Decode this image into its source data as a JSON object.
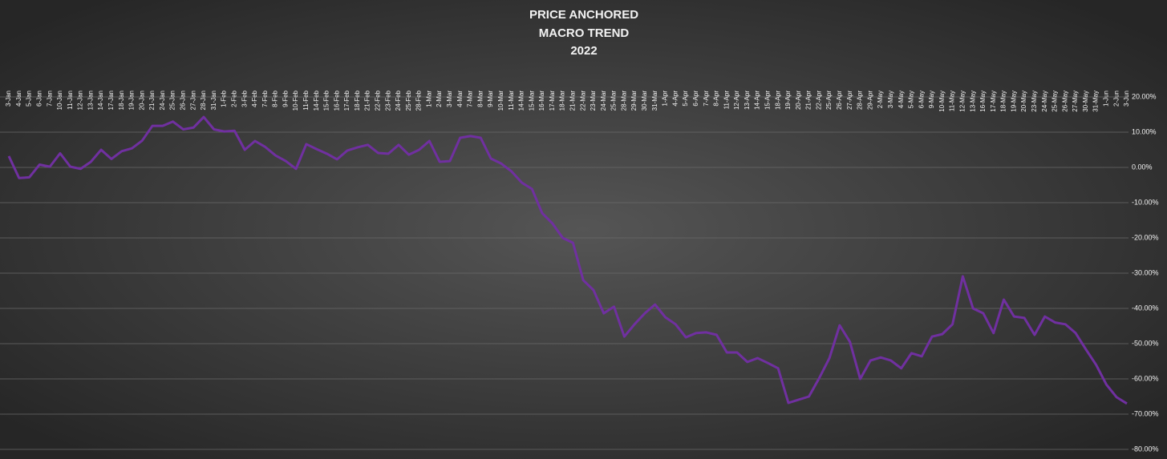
{
  "chart_data": {
    "type": "line",
    "title": [
      "PRICE ANCHORED",
      "MACRO TREND",
      "2022"
    ],
    "categories": [
      "3-Jan",
      "4-Jan",
      "5-Jan",
      "6-Jan",
      "7-Jan",
      "10-Jan",
      "11-Jan",
      "12-Jan",
      "13-Jan",
      "14-Jan",
      "17-Jan",
      "18-Jan",
      "19-Jan",
      "20-Jan",
      "21-Jan",
      "24-Jan",
      "25-Jan",
      "26-Jan",
      "27-Jan",
      "28-Jan",
      "31-Jan",
      "1-Feb",
      "2-Feb",
      "3-Feb",
      "4-Feb",
      "7-Feb",
      "8-Feb",
      "9-Feb",
      "10-Feb",
      "11-Feb",
      "14-Feb",
      "15-Feb",
      "16-Feb",
      "17-Feb",
      "18-Feb",
      "21-Feb",
      "22-Feb",
      "23-Feb",
      "24-Feb",
      "25-Feb",
      "28-Feb",
      "1-Mar",
      "2-Mar",
      "3-Mar",
      "4-Mar",
      "7-Mar",
      "8-Mar",
      "9-Mar",
      "10-Mar",
      "11-Mar",
      "14-Mar",
      "15-Mar",
      "16-Mar",
      "17-Mar",
      "18-Mar",
      "21-Mar",
      "22-Mar",
      "23-Mar",
      "24-Mar",
      "25-Mar",
      "28-Mar",
      "29-Mar",
      "30-Mar",
      "31-Mar",
      "1-Apr",
      "4-Apr",
      "5-Apr",
      "6-Apr",
      "7-Apr",
      "8-Apr",
      "11-Apr",
      "12-Apr",
      "13-Apr",
      "14-Apr",
      "15-Apr",
      "18-Apr",
      "19-Apr",
      "20-Apr",
      "21-Apr",
      "22-Apr",
      "25-Apr",
      "26-Apr",
      "27-Apr",
      "28-Apr",
      "29-Apr",
      "2-May",
      "3-May",
      "4-May",
      "5-May",
      "6-May",
      "9-May",
      "10-May",
      "11-May",
      "12-May",
      "13-May",
      "16-May",
      "17-May",
      "18-May",
      "19-May",
      "20-May",
      "23-May",
      "24-May",
      "25-May",
      "26-May",
      "27-May",
      "30-May",
      "31-May",
      "1-Jun",
      "2-Jun",
      "3-Jun"
    ],
    "series": [
      {
        "color": "#7030a0",
        "values": [
          3.2,
          -3,
          -2.8,
          0.8,
          0.2,
          4,
          0.2,
          -0.4,
          1.6,
          5,
          2.4,
          4.6,
          5.4,
          7.6,
          11.8,
          11.8,
          13,
          10.8,
          11.3,
          14.3,
          10.8,
          10.2,
          10.4,
          5,
          7.5,
          5.8,
          3.4,
          1.8,
          -0.4,
          6.6,
          5.2,
          3.9,
          2.3,
          4.8,
          5.7,
          6.4,
          4.1,
          3.9,
          6.4,
          3.6,
          5,
          7.5,
          1.6,
          1.8,
          8.4,
          8.9,
          8.4,
          2.5,
          1.1,
          -1.1,
          -4.3,
          -6.1,
          -13,
          -15.9,
          -20,
          -21.4,
          -32,
          -34.8,
          -41.4,
          -39.5,
          -48,
          -44.5,
          -41.4,
          -38.9,
          -42.5,
          -44.5,
          -48.2,
          -47,
          -46.8,
          -47.5,
          -52.5,
          -52.5,
          -55.2,
          -54.1,
          -55.5,
          -57,
          -66.8,
          -65.9,
          -65,
          -59.8,
          -54.1,
          -44.8,
          -49.5,
          -60,
          -54.8,
          -53.9,
          -54.8,
          -57,
          -52.7,
          -53.6,
          -48,
          -47.3,
          -44.5,
          -30.9,
          -40,
          -41.4,
          -47,
          -37.5,
          -42.3,
          -42.7,
          -47.5,
          -42.3,
          -44,
          -44.5,
          -47,
          -51.6,
          -56,
          -61.6,
          -65.2,
          -67
        ]
      }
    ],
    "ylim": [
      -80,
      20
    ],
    "yticks": [
      {
        "value": 20,
        "label": "20.00%"
      },
      {
        "value": 10,
        "label": "10.00%"
      },
      {
        "value": 0,
        "label": "0.00%"
      },
      {
        "value": -10,
        "label": "-10.00%"
      },
      {
        "value": -20,
        "label": "-20.00%"
      },
      {
        "value": -30,
        "label": "-30.00%"
      },
      {
        "value": -40,
        "label": "-40.00%"
      },
      {
        "value": -50,
        "label": "-50.00%"
      },
      {
        "value": -60,
        "label": "-60.00%"
      },
      {
        "value": -70,
        "label": "-70.00%"
      },
      {
        "value": -80,
        "label": "-80.00%"
      }
    ],
    "grid": true
  }
}
